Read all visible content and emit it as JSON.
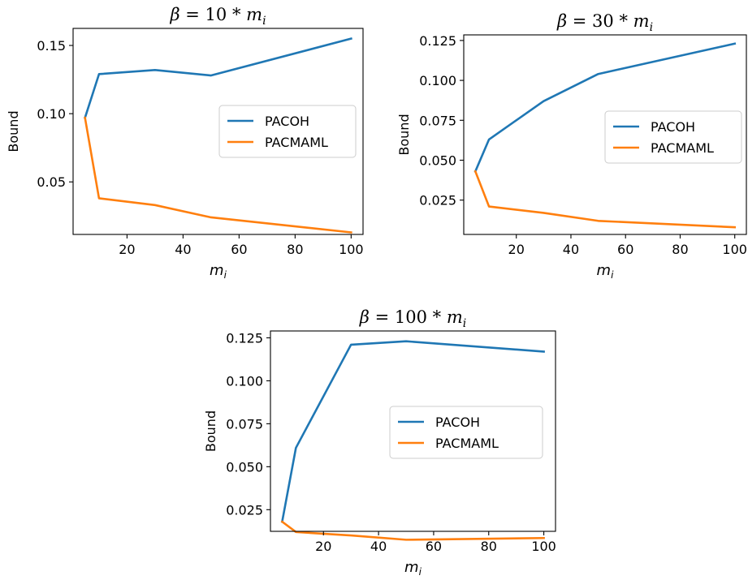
{
  "chart_data": [
    {
      "type": "line",
      "title": "β = 10 * m_i",
      "title_parts": {
        "prefix": "β",
        "equals": " = ",
        "coef": "10",
        "times": " * ",
        "var": "m",
        "sub": "i"
      },
      "xlabel": {
        "var": "m",
        "sub": "i"
      },
      "ylabel": "Bound",
      "xlim": [
        0.75,
        104.25
      ],
      "ylim": [
        0.0115,
        0.1625
      ],
      "xticks": [
        20,
        40,
        60,
        80,
        100
      ],
      "xtick_labels": [
        "20",
        "40",
        "60",
        "80",
        "100"
      ],
      "yticks": [
        0.05,
        0.1,
        0.15
      ],
      "ytick_labels": [
        "0.05",
        "0.10",
        "0.15"
      ],
      "grid": false,
      "legend_position": "center-right",
      "series": [
        {
          "name": "PACOH",
          "color": "#1f77b4",
          "x": [
            5,
            10,
            30,
            50,
            100
          ],
          "y": [
            0.097,
            0.129,
            0.132,
            0.128,
            0.155
          ]
        },
        {
          "name": "PACMAML",
          "color": "#ff7f0e",
          "x": [
            5,
            10,
            30,
            50,
            100
          ],
          "y": [
            0.097,
            0.038,
            0.033,
            0.024,
            0.013
          ]
        }
      ]
    },
    {
      "type": "line",
      "title": "β = 30 * m_i",
      "title_parts": {
        "prefix": "β",
        "equals": " = ",
        "coef": "30",
        "times": " * ",
        "var": "m",
        "sub": "i"
      },
      "xlabel": {
        "var": "m",
        "sub": "i"
      },
      "ylabel": "Bound",
      "xlim": [
        0.75,
        104.25
      ],
      "ylim": [
        0.0035,
        0.1285
      ],
      "xticks": [
        20,
        40,
        60,
        80,
        100
      ],
      "xtick_labels": [
        "20",
        "40",
        "60",
        "80",
        "100"
      ],
      "yticks": [
        0.025,
        0.05,
        0.075,
        0.1,
        0.125
      ],
      "ytick_labels": [
        "0.025",
        "0.050",
        "0.075",
        "0.100",
        "0.125"
      ],
      "grid": false,
      "legend_position": "center-right",
      "series": [
        {
          "name": "PACOH",
          "color": "#1f77b4",
          "x": [
            5,
            10,
            30,
            50,
            100
          ],
          "y": [
            0.043,
            0.063,
            0.087,
            0.104,
            0.123
          ]
        },
        {
          "name": "PACMAML",
          "color": "#ff7f0e",
          "x": [
            5,
            10,
            30,
            50,
            100
          ],
          "y": [
            0.043,
            0.021,
            0.017,
            0.012,
            0.008
          ]
        }
      ]
    },
    {
      "type": "line",
      "title": "β = 100 * m_i",
      "title_parts": {
        "prefix": "β",
        "equals": " = ",
        "coef": "100",
        "times": " * ",
        "var": "m",
        "sub": "i"
      },
      "xlabel": {
        "var": "m",
        "sub": "i"
      },
      "ylabel": "Bound",
      "xlim": [
        0.75,
        104.25
      ],
      "ylim": [
        0.0124,
        0.129
      ],
      "xticks": [
        20,
        40,
        60,
        80,
        100
      ],
      "xtick_labels": [
        "20",
        "40",
        "60",
        "80",
        "100"
      ],
      "yticks": [
        0.025,
        0.05,
        0.075,
        0.1,
        0.125
      ],
      "ytick_labels": [
        "0.025",
        "0.050",
        "0.075",
        "0.100",
        "0.125"
      ],
      "grid": false,
      "legend_position": "center-right",
      "series": [
        {
          "name": "PACOH",
          "color": "#1f77b4",
          "x": [
            5,
            10,
            30,
            50,
            100
          ],
          "y": [
            0.018,
            0.061,
            0.121,
            0.123,
            0.117
          ]
        },
        {
          "name": "PACMAML",
          "color": "#ff7f0e",
          "x": [
            5,
            10,
            30,
            50,
            100
          ],
          "y": [
            0.018,
            0.012,
            0.01,
            0.0075,
            0.0085
          ]
        }
      ]
    }
  ]
}
